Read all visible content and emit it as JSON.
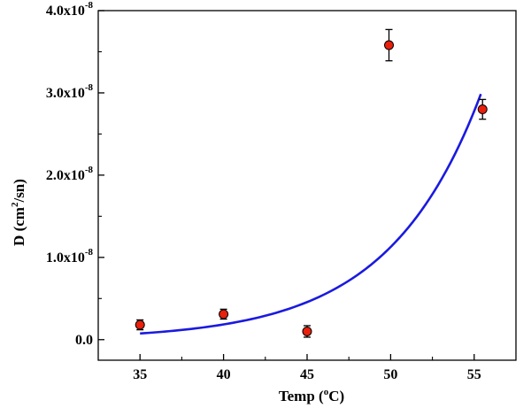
{
  "chart_data": {
    "type": "scatter",
    "xlabel": "Temp (",
    "xlabel_unit_sup": "o",
    "xlabel_unit": "C)",
    "ylabel_prefix": "D (cm",
    "ylabel_sup": "2",
    "ylabel_suffix": "/sn)",
    "xlim": [
      32.5,
      57.5
    ],
    "ylim": [
      -2.5e-09,
      4e-08
    ],
    "x_ticks": [
      {
        "value": 35,
        "label": "35"
      },
      {
        "value": 40,
        "label": "40"
      },
      {
        "value": 45,
        "label": "45"
      },
      {
        "value": 50,
        "label": "50"
      },
      {
        "value": 55,
        "label": "55"
      }
    ],
    "y_ticks": [
      {
        "value": 0.0,
        "label": "0.0",
        "exp": ""
      },
      {
        "value": 1e-08,
        "label": "1.0x10",
        "exp": "-8"
      },
      {
        "value": 2e-08,
        "label": "2.0x10",
        "exp": "-8"
      },
      {
        "value": 3e-08,
        "label": "3.0x10",
        "exp": "-8"
      },
      {
        "value": 4e-08,
        "label": "4.0x10",
        "exp": "-8"
      }
    ],
    "series": [
      {
        "kind": "points",
        "color": "#e8200c",
        "edge_color": "#000000",
        "points": [
          {
            "x": 35,
            "y": 1.8e-09,
            "err": 6e-10
          },
          {
            "x": 40,
            "y": 3.1e-09,
            "err": 6e-10
          },
          {
            "x": 45,
            "y": 1e-09,
            "err": 7e-10
          },
          {
            "x": 49.9,
            "y": 3.58e-08,
            "err": 1.9e-09
          },
          {
            "x": 55.5,
            "y": 2.8e-08,
            "err": 1.2e-09
          }
        ]
      },
      {
        "kind": "fit",
        "color": "#1a1ae0",
        "x_range": [
          35,
          55.4
        ],
        "model": "exponential",
        "a": 7.5e-10,
        "b": 0.1806,
        "x0": 35
      }
    ],
    "grid": false
  }
}
